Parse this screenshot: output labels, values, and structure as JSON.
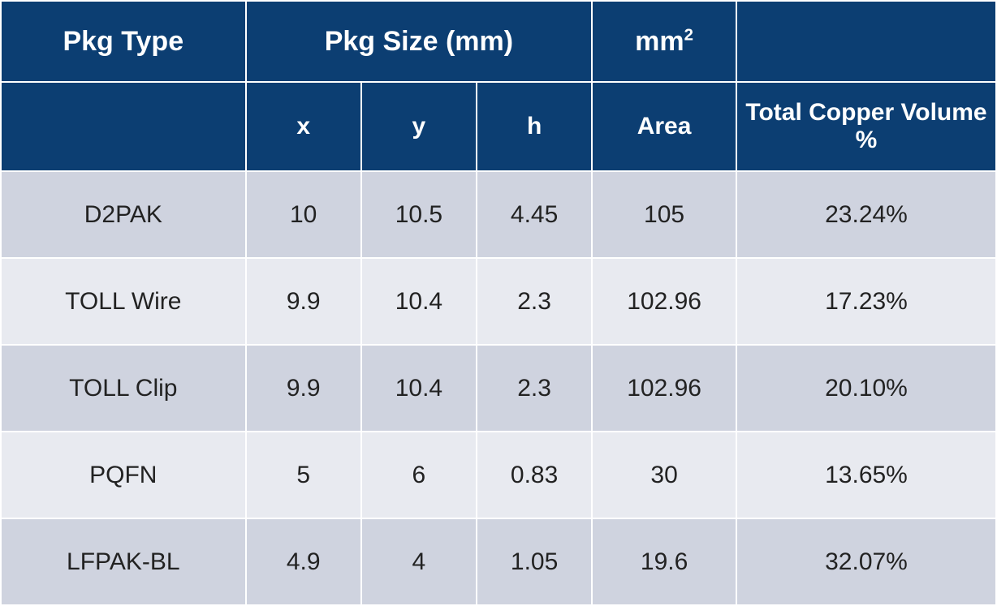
{
  "table": {
    "type": "table",
    "header_bg": "#0c3e72",
    "header_fg": "#ffffff",
    "row_odd_bg": "#cfd3df",
    "row_even_bg": "#e8eaf0",
    "text_color": "#222222",
    "border_color": "#ffffff",
    "header_fontsize_row1": 34,
    "header_fontsize_row2": 30,
    "body_fontsize": 30,
    "col_widths_pct": [
      24.6,
      11.6,
      11.6,
      11.6,
      14.5,
      26.1
    ],
    "top_headers": {
      "pkg_type": "Pkg Type",
      "pkg_size": "Pkg Size (mm)",
      "mm2_prefix": "mm",
      "mm2_sup": "2",
      "blank": ""
    },
    "sub_headers": {
      "blank": "",
      "x": "x",
      "y": "y",
      "h": "h",
      "area": "Area",
      "copper": "Total Copper Volume %"
    },
    "rows": [
      {
        "pkg": "D2PAK",
        "x": "10",
        "y": "10.5",
        "h": "4.45",
        "area": "105",
        "cu": "23.24%"
      },
      {
        "pkg": "TOLL Wire",
        "x": "9.9",
        "y": "10.4",
        "h": "2.3",
        "area": "102.96",
        "cu": "17.23%"
      },
      {
        "pkg": "TOLL Clip",
        "x": "9.9",
        "y": "10.4",
        "h": "2.3",
        "area": "102.96",
        "cu": "20.10%"
      },
      {
        "pkg": "PQFN",
        "x": "5",
        "y": "6",
        "h": "0.83",
        "area": "30",
        "cu": "13.65%"
      },
      {
        "pkg": "LFPAK-BL",
        "x": "4.9",
        "y": "4",
        "h": "1.05",
        "area": "19.6",
        "cu": "32.07%"
      }
    ]
  }
}
